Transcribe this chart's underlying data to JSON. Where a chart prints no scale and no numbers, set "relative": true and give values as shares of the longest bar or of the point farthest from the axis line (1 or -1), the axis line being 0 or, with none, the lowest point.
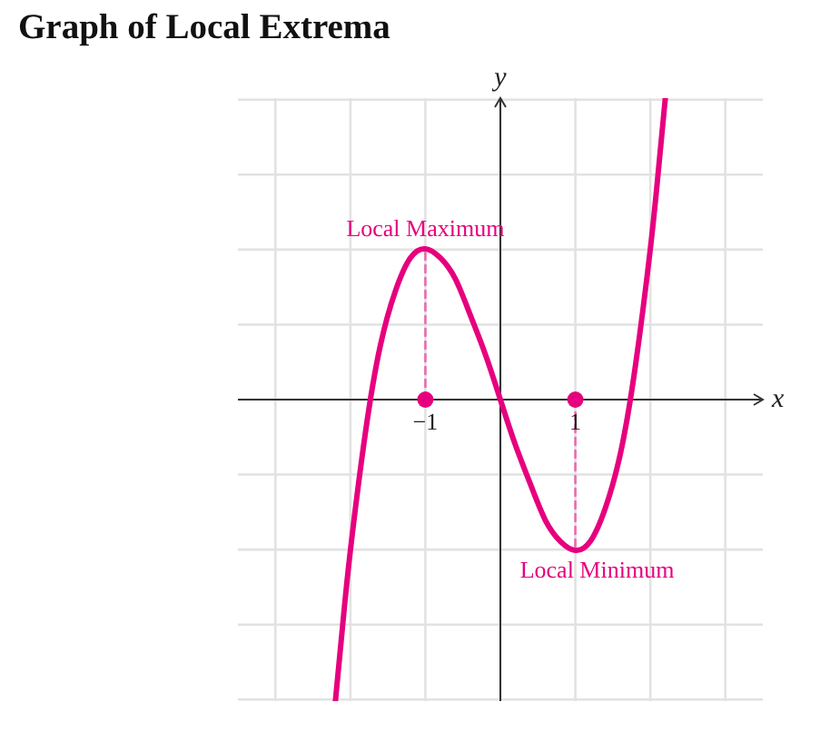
{
  "chart_data": {
    "type": "line",
    "title": "Graph of Local Extrema",
    "xlabel": "x",
    "ylabel": "y",
    "relative": true,
    "grid": true,
    "xlim": [
      -3.5,
      3.5
    ],
    "xticks": [
      {
        "value": -3,
        "label": null
      },
      {
        "value": -2,
        "label": null
      },
      {
        "value": -1,
        "label": "−1"
      },
      {
        "value": 0,
        "label": null
      },
      1,
      {
        "value": 2,
        "label": null
      },
      {
        "value": 3,
        "label": null
      }
    ],
    "series": [
      {
        "type": "line",
        "color": "#e6007e",
        "line_style": "solid",
        "x": [
          -2.2,
          -2.1,
          -2.0,
          -1.8,
          -1.6,
          -1.4,
          -1.2,
          -1.0,
          -0.8,
          -0.6,
          -0.4,
          -0.2,
          0,
          0.2,
          0.4,
          0.6,
          0.8,
          1.0,
          1.2,
          1.4,
          1.6,
          1.8,
          2.0,
          2.1,
          2.2
        ],
        "values": [
          -1.0,
          -0.74,
          -0.5,
          -0.11,
          0.18,
          0.36,
          0.47,
          0.5,
          0.47,
          0.4,
          0.28,
          0.15,
          0,
          -0.15,
          -0.28,
          -0.4,
          -0.47,
          -0.5,
          -0.47,
          -0.36,
          -0.18,
          0.11,
          0.5,
          0.74,
          1.0
        ]
      },
      {
        "type": "line",
        "color": "#ee6aaf",
        "line_style": "dashed",
        "x": [
          -1,
          -1
        ],
        "values": [
          0,
          0.5
        ]
      },
      {
        "type": "line",
        "color": "#ee6aaf",
        "line_style": "dashed",
        "x": [
          1,
          1
        ],
        "values": [
          0,
          -0.5
        ]
      },
      {
        "type": "scatter",
        "color": "#e6007e",
        "marker": "circle",
        "x": [
          -1,
          1
        ],
        "values": [
          0,
          0
        ]
      }
    ],
    "annotations": [
      {
        "text": "Local Maximum",
        "x": -1,
        "y": 0.5
      },
      {
        "text": "Local Minimum",
        "x": 1,
        "y": -0.5
      }
    ]
  }
}
